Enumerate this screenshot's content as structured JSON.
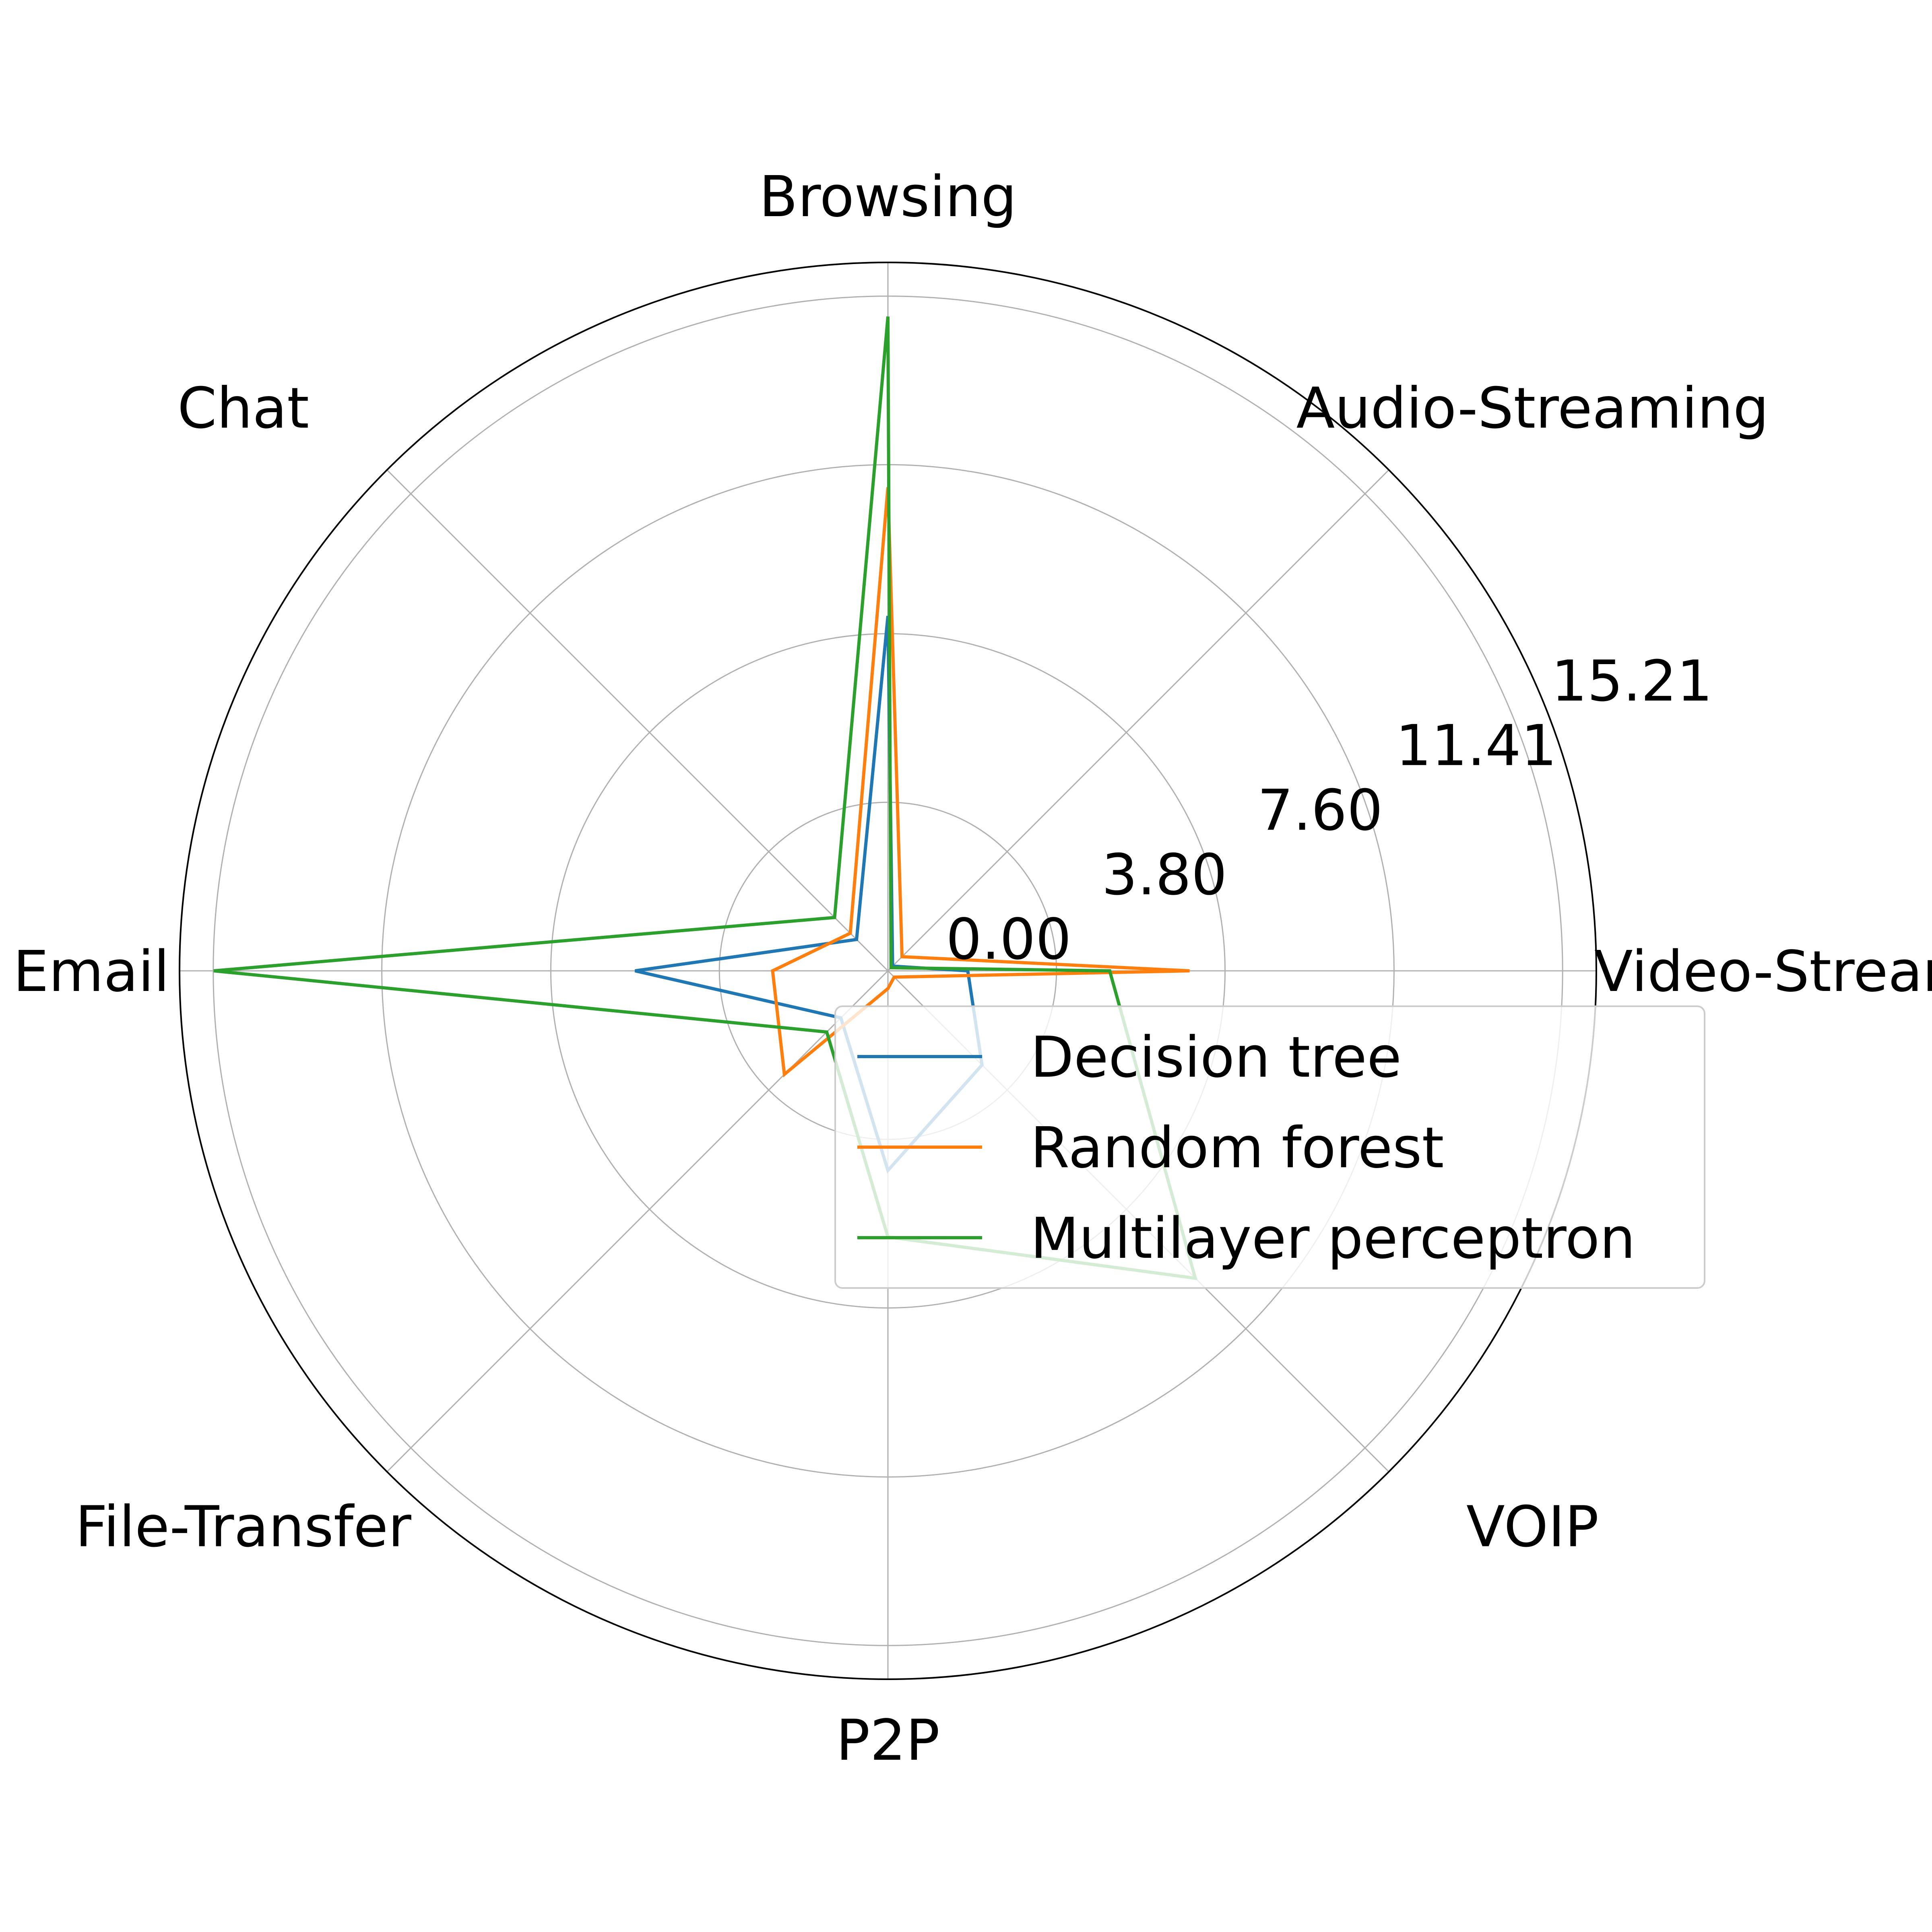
{
  "chart_data": {
    "type": "radar",
    "categories": [
      "Video-Streaming",
      "Audio-Streaming",
      "Browsing",
      "Chat",
      "Email",
      "File-Transfer",
      "P2P",
      "VOIP"
    ],
    "radial_ticks": [
      "0.00",
      "3.80",
      "7.60",
      "11.41",
      "15.21"
    ],
    "radial_tick_values": [
      0.0,
      3.8,
      7.6,
      11.41,
      15.21
    ],
    "rlim": [
      0,
      15.97
    ],
    "grid": true,
    "legend_position": "lower-right",
    "series": [
      {
        "name": "Decision tree",
        "color": "#1f77b4",
        "values": [
          1.8,
          0.15,
          8.0,
          1.0,
          5.7,
          1.5,
          4.5,
          3.0
        ]
      },
      {
        "name": "Random forest",
        "color": "#ff7f0e",
        "values": [
          6.8,
          0.45,
          10.9,
          1.2,
          2.6,
          3.3,
          0.4,
          0.2
        ]
      },
      {
        "name": "Multilayer perceptron",
        "color": "#2ca02c",
        "values": [
          5.0,
          0.1,
          14.75,
          1.7,
          15.2,
          1.95,
          6.0,
          9.8
        ]
      }
    ]
  }
}
